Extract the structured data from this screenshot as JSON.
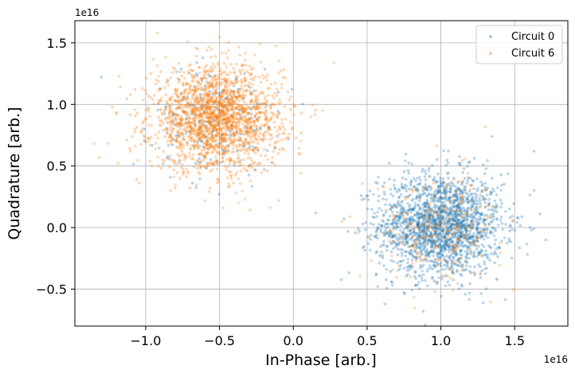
{
  "chart_data": {
    "type": "scatter",
    "xlabel": "In-Phase [arb.]",
    "ylabel": "Quadrature [arb.]",
    "x_offset_label": "1e16",
    "y_offset_label": "1e16",
    "xlim": [
      -1.48,
      1.86
    ],
    "ylim": [
      -0.8,
      1.68
    ],
    "x_ticks": [
      -1.0,
      -0.5,
      0.0,
      0.5,
      1.0,
      1.5
    ],
    "x_tick_labels": [
      "−1.0",
      "−0.5",
      "0.0",
      "0.5",
      "1.0",
      "1.5"
    ],
    "y_ticks": [
      -0.5,
      0.0,
      0.5,
      1.0,
      1.5
    ],
    "y_tick_labels": [
      "−0.5",
      "0.0",
      "0.5",
      "1.0",
      "1.5"
    ],
    "grid": true,
    "legend_position": "top-right",
    "series": [
      {
        "name": "Circuit 0",
        "color": "#1f77b4",
        "marker_alpha": 0.3,
        "clusters": [
          {
            "center": [
              1.0,
              0.02
            ],
            "spread": [
              0.21,
              0.21
            ],
            "weight": 0.88
          },
          {
            "center": [
              -0.52,
              0.88
            ],
            "spread": [
              0.21,
              0.21
            ],
            "weight": 0.12
          }
        ],
        "points": [
          [
            1.0,
            0.02
          ],
          [
            0.62,
            -0.62
          ],
          [
            0.88,
            -0.68
          ],
          [
            1.71,
            -0.1
          ],
          [
            1.63,
            0.62
          ],
          [
            0.65,
            0.52
          ],
          [
            1.05,
            0.62
          ],
          [
            -1.3,
            1.22
          ]
        ]
      },
      {
        "name": "Circuit 6",
        "color": "#ff7f0e",
        "marker_alpha": 0.3,
        "clusters": [
          {
            "center": [
              -0.52,
              0.88
            ],
            "spread": [
              0.22,
              0.21
            ],
            "weight": 0.88
          },
          {
            "center": [
              1.0,
              0.02
            ],
            "spread": [
              0.21,
              0.21
            ],
            "weight": 0.12
          }
        ],
        "points": [
          [
            -0.52,
            0.88
          ],
          [
            -0.92,
            1.58
          ],
          [
            -1.35,
            0.68
          ],
          [
            -0.5,
            1.55
          ],
          [
            0.12,
            0.9
          ],
          [
            -0.1,
            0.22
          ],
          [
            1.3,
            0.82
          ],
          [
            0.33,
            0.05
          ],
          [
            0.82,
            -0.65
          ]
        ]
      }
    ]
  }
}
